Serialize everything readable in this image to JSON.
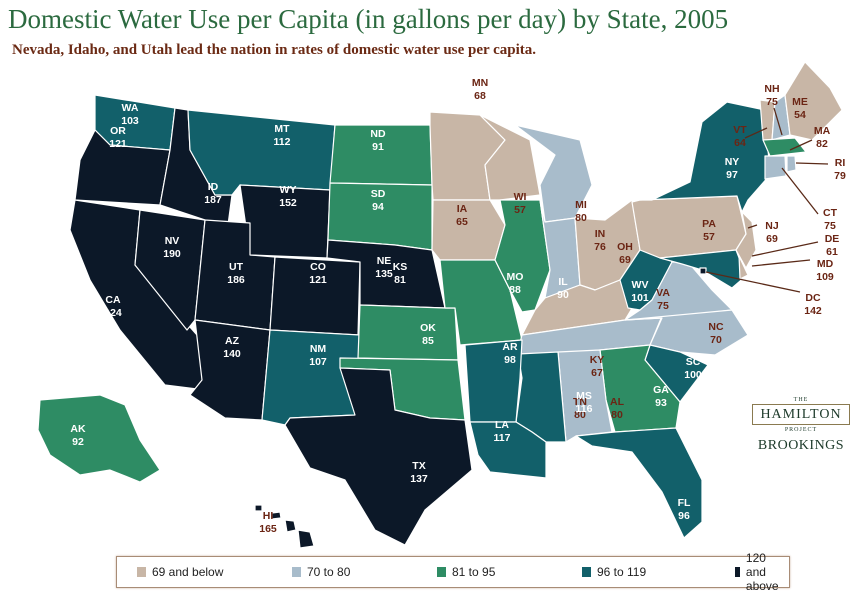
{
  "title": "Domestic Water Use per Capita (in gallons per day) by State, 2005",
  "subtitle": "Nevada, Idaho, and Utah lead the nation in rates of domestic water use per capita.",
  "legend": [
    {
      "label": "69 and below",
      "color": "#c8b6a6"
    },
    {
      "label": "70 to 80",
      "color": "#a8bccb"
    },
    {
      "label": "81 to 95",
      "color": "#2e8c64"
    },
    {
      "label": "96 to 119",
      "color": "#12606a"
    },
    {
      "label": "120 and above",
      "color": "#0c1828"
    }
  ],
  "logo": {
    "the": "THE",
    "name": "HAMILTON",
    "project": "PROJECT",
    "org": "BROOKINGS"
  },
  "states": [
    {
      "abbr": "WA",
      "value": "103"
    },
    {
      "abbr": "OR",
      "value": "121"
    },
    {
      "abbr": "CA",
      "value": "124"
    },
    {
      "abbr": "NV",
      "value": "190"
    },
    {
      "abbr": "ID",
      "value": "187"
    },
    {
      "abbr": "MT",
      "value": "112"
    },
    {
      "abbr": "WY",
      "value": "152"
    },
    {
      "abbr": "UT",
      "value": "186"
    },
    {
      "abbr": "CO",
      "value": "121"
    },
    {
      "abbr": "AZ",
      "value": "140"
    },
    {
      "abbr": "NM",
      "value": "107"
    },
    {
      "abbr": "ND",
      "value": "91"
    },
    {
      "abbr": "SD",
      "value": "94"
    },
    {
      "abbr": "NE",
      "value": "135"
    },
    {
      "abbr": "KS",
      "value": "81"
    },
    {
      "abbr": "OK",
      "value": "85"
    },
    {
      "abbr": "TX",
      "value": "137"
    },
    {
      "abbr": "MN",
      "value": "68"
    },
    {
      "abbr": "IA",
      "value": "65"
    },
    {
      "abbr": "MO",
      "value": "88"
    },
    {
      "abbr": "WI",
      "value": "57"
    },
    {
      "abbr": "IL",
      "value": "90"
    },
    {
      "abbr": "MI",
      "value": "80"
    },
    {
      "abbr": "IN",
      "value": "76"
    },
    {
      "abbr": "OH",
      "value": "69"
    },
    {
      "abbr": "KY",
      "value": "67"
    },
    {
      "abbr": "TN",
      "value": "80"
    },
    {
      "abbr": "WV",
      "value": "101"
    },
    {
      "abbr": "VA",
      "value": "75"
    },
    {
      "abbr": "NC",
      "value": "70"
    },
    {
      "abbr": "SC",
      "value": "100"
    },
    {
      "abbr": "GA",
      "value": "93"
    },
    {
      "abbr": "AL",
      "value": "80"
    },
    {
      "abbr": "MS",
      "value": "116"
    },
    {
      "abbr": "AR",
      "value": "98"
    },
    {
      "abbr": "LA",
      "value": "117"
    },
    {
      "abbr": "FL",
      "value": "96"
    },
    {
      "abbr": "PA",
      "value": "57"
    },
    {
      "abbr": "NY",
      "value": "97"
    },
    {
      "abbr": "NJ",
      "value": "69"
    },
    {
      "abbr": "MD",
      "value": "109"
    },
    {
      "abbr": "DE",
      "value": "61"
    },
    {
      "abbr": "DC",
      "value": "142"
    },
    {
      "abbr": "VT",
      "value": "64"
    },
    {
      "abbr": "NH",
      "value": "75"
    },
    {
      "abbr": "ME",
      "value": "54"
    },
    {
      "abbr": "MA",
      "value": "82"
    },
    {
      "abbr": "CT",
      "value": "75"
    },
    {
      "abbr": "RI",
      "value": "79"
    },
    {
      "abbr": "AK",
      "value": "92"
    },
    {
      "abbr": "HI",
      "value": "165"
    }
  ]
}
